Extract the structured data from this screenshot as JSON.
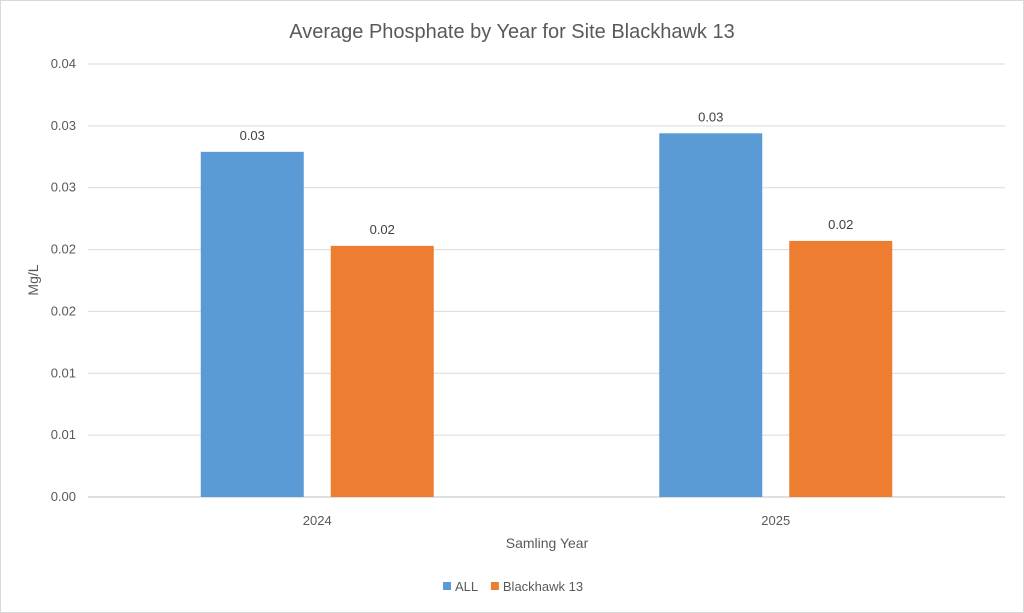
{
  "chart_data": {
    "type": "bar",
    "title": "Average Phosphate by Year for Site Blackhawk 13",
    "xlabel": "Samling Year",
    "ylabel": "Mg/L",
    "categories": [
      "2024",
      "2025"
    ],
    "series": [
      {
        "name": "ALL",
        "color": "#5b9bd5",
        "values": [
          0.0279,
          0.0294
        ],
        "labels": [
          "0.03",
          "0.03"
        ]
      },
      {
        "name": "Blackhawk 13",
        "color": "#ed7d31",
        "values": [
          0.0203,
          0.0207
        ],
        "labels": [
          "0.02",
          "0.02"
        ]
      }
    ],
    "ylim": [
      0,
      0.035
    ],
    "yticks": [
      0,
      0.005,
      0.01,
      0.015,
      0.02,
      0.025,
      0.03,
      0.035
    ],
    "ytick_labels": [
      "0.00",
      "0.01",
      "0.01",
      "0.02",
      "0.02",
      "0.03",
      "0.03",
      "0.04"
    ],
    "grid": true,
    "legend": "bottom"
  }
}
